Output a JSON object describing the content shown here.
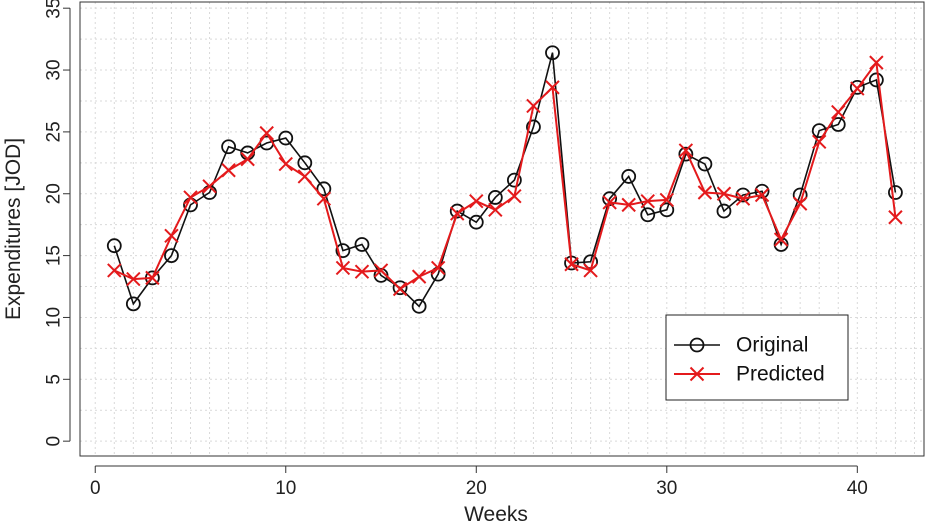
{
  "chart_data": {
    "type": "line",
    "xlabel": "Weeks",
    "ylabel": "Expenditures [JOD]",
    "xlim": [
      -0.8,
      43.5
    ],
    "ylim": [
      -1.2,
      35.5
    ],
    "xticks": [
      0,
      10,
      20,
      30,
      40
    ],
    "yticks": [
      0,
      5,
      10,
      15,
      20,
      25,
      30,
      35
    ],
    "xgrid": [
      0,
      1,
      2,
      3,
      4,
      5,
      6,
      7,
      8,
      9,
      10,
      11,
      12,
      13,
      14,
      15,
      16,
      17,
      18,
      19,
      20,
      21,
      22,
      23,
      24,
      25,
      26,
      27,
      28,
      29,
      30,
      31,
      32,
      33,
      34,
      35,
      36,
      37,
      38,
      39,
      40,
      41,
      42,
      43
    ],
    "ygrid": [
      0,
      2.5,
      5,
      7.5,
      10,
      12.5,
      15,
      17.5,
      20,
      22.5,
      25,
      27.5,
      30,
      32.5,
      35
    ],
    "grid": true,
    "legend_position": "bottom-right",
    "x": [
      1,
      2,
      3,
      4,
      5,
      6,
      7,
      8,
      9,
      10,
      11,
      12,
      13,
      14,
      15,
      16,
      17,
      18,
      19,
      20,
      21,
      22,
      23,
      24,
      25,
      26,
      27,
      28,
      29,
      30,
      31,
      32,
      33,
      34,
      35,
      36,
      37,
      38,
      39,
      40,
      41,
      42
    ],
    "series": [
      {
        "name": "Original",
        "color": "#111111",
        "marker": "circle",
        "values": [
          15.8,
          11.1,
          13.2,
          15.0,
          19.1,
          20.1,
          23.8,
          23.3,
          24.1,
          24.5,
          22.5,
          20.4,
          15.4,
          15.9,
          13.4,
          12.4,
          10.9,
          13.5,
          18.6,
          17.7,
          19.7,
          21.1,
          25.4,
          31.4,
          14.4,
          14.5,
          19.6,
          21.4,
          18.3,
          18.7,
          23.2,
          22.4,
          18.6,
          19.9,
          20.2,
          15.9,
          19.9,
          25.1,
          25.6,
          28.6,
          29.2,
          20.1
        ]
      },
      {
        "name": "Predicted",
        "color": "#e41a1c",
        "marker": "x",
        "values": [
          13.8,
          13.1,
          13.2,
          16.6,
          19.7,
          20.6,
          21.9,
          22.8,
          24.9,
          22.4,
          21.4,
          19.6,
          14.0,
          13.7,
          13.8,
          12.3,
          13.3,
          14.0,
          18.4,
          19.4,
          18.7,
          19.8,
          27.1,
          28.6,
          14.3,
          13.8,
          19.3,
          19.1,
          19.4,
          19.5,
          23.5,
          20.1,
          20.0,
          19.6,
          19.9,
          16.3,
          19.2,
          24.2,
          26.6,
          28.5,
          30.6,
          18.1
        ]
      }
    ]
  }
}
